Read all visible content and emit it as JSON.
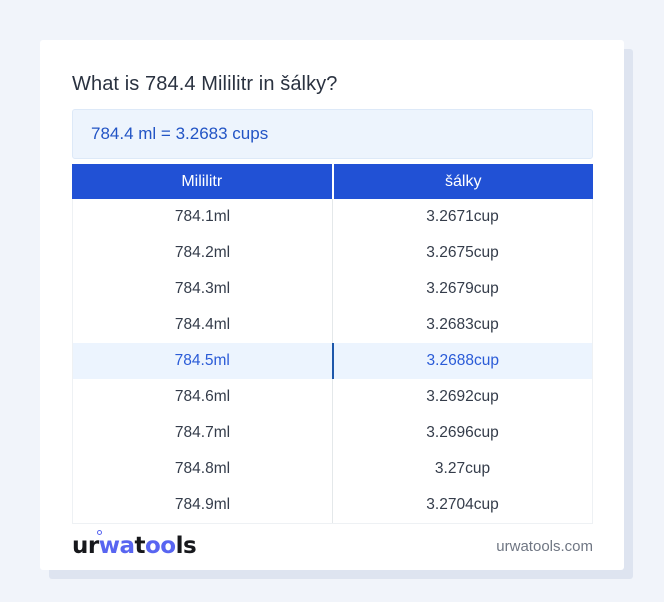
{
  "page": {
    "title": "What is 784.4 Mililitr in šálky?"
  },
  "result_box": {
    "text": "784.4 ml = 3.2683 cups"
  },
  "table": {
    "headers": [
      "Mililitr",
      "šálky"
    ],
    "rows": [
      {
        "ml": "784.1ml",
        "cup": "3.2671cup",
        "highlighted": false
      },
      {
        "ml": "784.2ml",
        "cup": "3.2675cup",
        "highlighted": false
      },
      {
        "ml": "784.3ml",
        "cup": "3.2679cup",
        "highlighted": false
      },
      {
        "ml": "784.4ml",
        "cup": "3.2683cup",
        "highlighted": false
      },
      {
        "ml": "784.5ml",
        "cup": "3.2688cup",
        "highlighted": true
      },
      {
        "ml": "784.6ml",
        "cup": "3.2692cup",
        "highlighted": false
      },
      {
        "ml": "784.7ml",
        "cup": "3.2696cup",
        "highlighted": false
      },
      {
        "ml": "784.8ml",
        "cup": "3.27cup",
        "highlighted": false
      },
      {
        "ml": "784.9ml",
        "cup": "3.2704cup",
        "highlighted": false
      }
    ]
  },
  "footer": {
    "logo": {
      "part1": "ur",
      "part2": "wa",
      "part3": "t",
      "part4": "oo",
      "part5": "ls"
    },
    "domain": "urwatools.com"
  },
  "colors": {
    "page_background": "#f1f4fa",
    "card_background": "#ffffff",
    "card_shadow": "#dee4f0",
    "header_blue": "#2151d5",
    "result_box_background": "#edf4fd",
    "result_text_blue": "#2254c5",
    "highlight_row_background": "#ecf4fe",
    "highlight_text_blue": "#2a5bd7",
    "highlight_divider_blue": "#1d57aa",
    "logo_accent": "#5865f1"
  }
}
